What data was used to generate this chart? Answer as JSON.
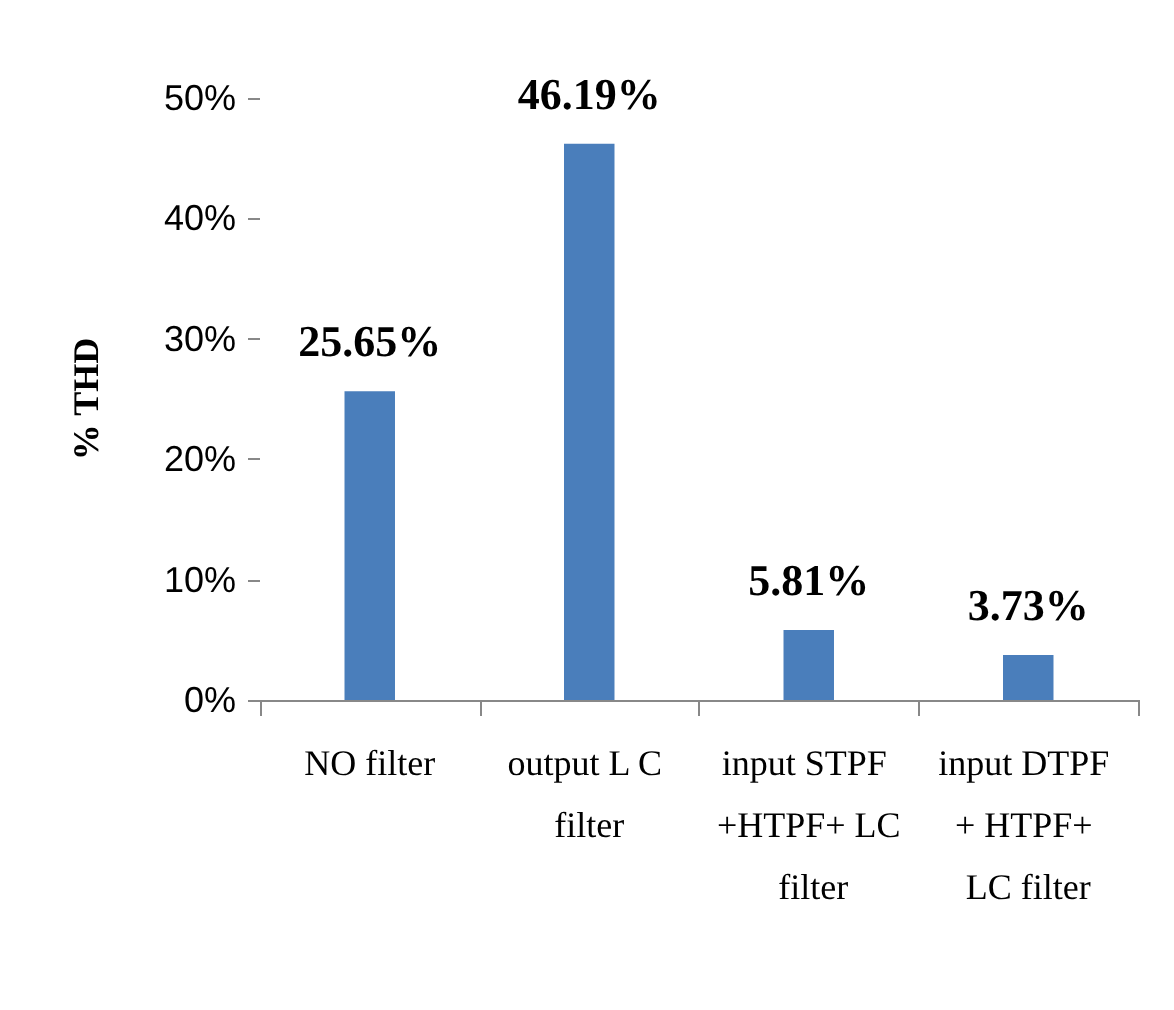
{
  "chart_data": {
    "type": "bar",
    "ylabel": "% THD",
    "categories": [
      "NO filter",
      "output L C filter",
      "input STPF +HTPF+ LC filter",
      "input DTPF + HTPF+ LC filter"
    ],
    "values": [
      25.65,
      46.19,
      5.81,
      3.73
    ],
    "value_labels": [
      "25.65%",
      "46.19%",
      "5.81%",
      "3.73%"
    ],
    "color": "#4a7ebb",
    "ylim": [
      0,
      50
    ],
    "yticks": [
      {
        "value": 0,
        "label": "0%"
      },
      {
        "value": 10,
        "label": "10%"
      },
      {
        "value": 20,
        "label": "20%"
      },
      {
        "value": 30,
        "label": "30%"
      },
      {
        "value": 40,
        "label": "40%"
      },
      {
        "value": 50,
        "label": "50%"
      }
    ],
    "grid": false
  }
}
